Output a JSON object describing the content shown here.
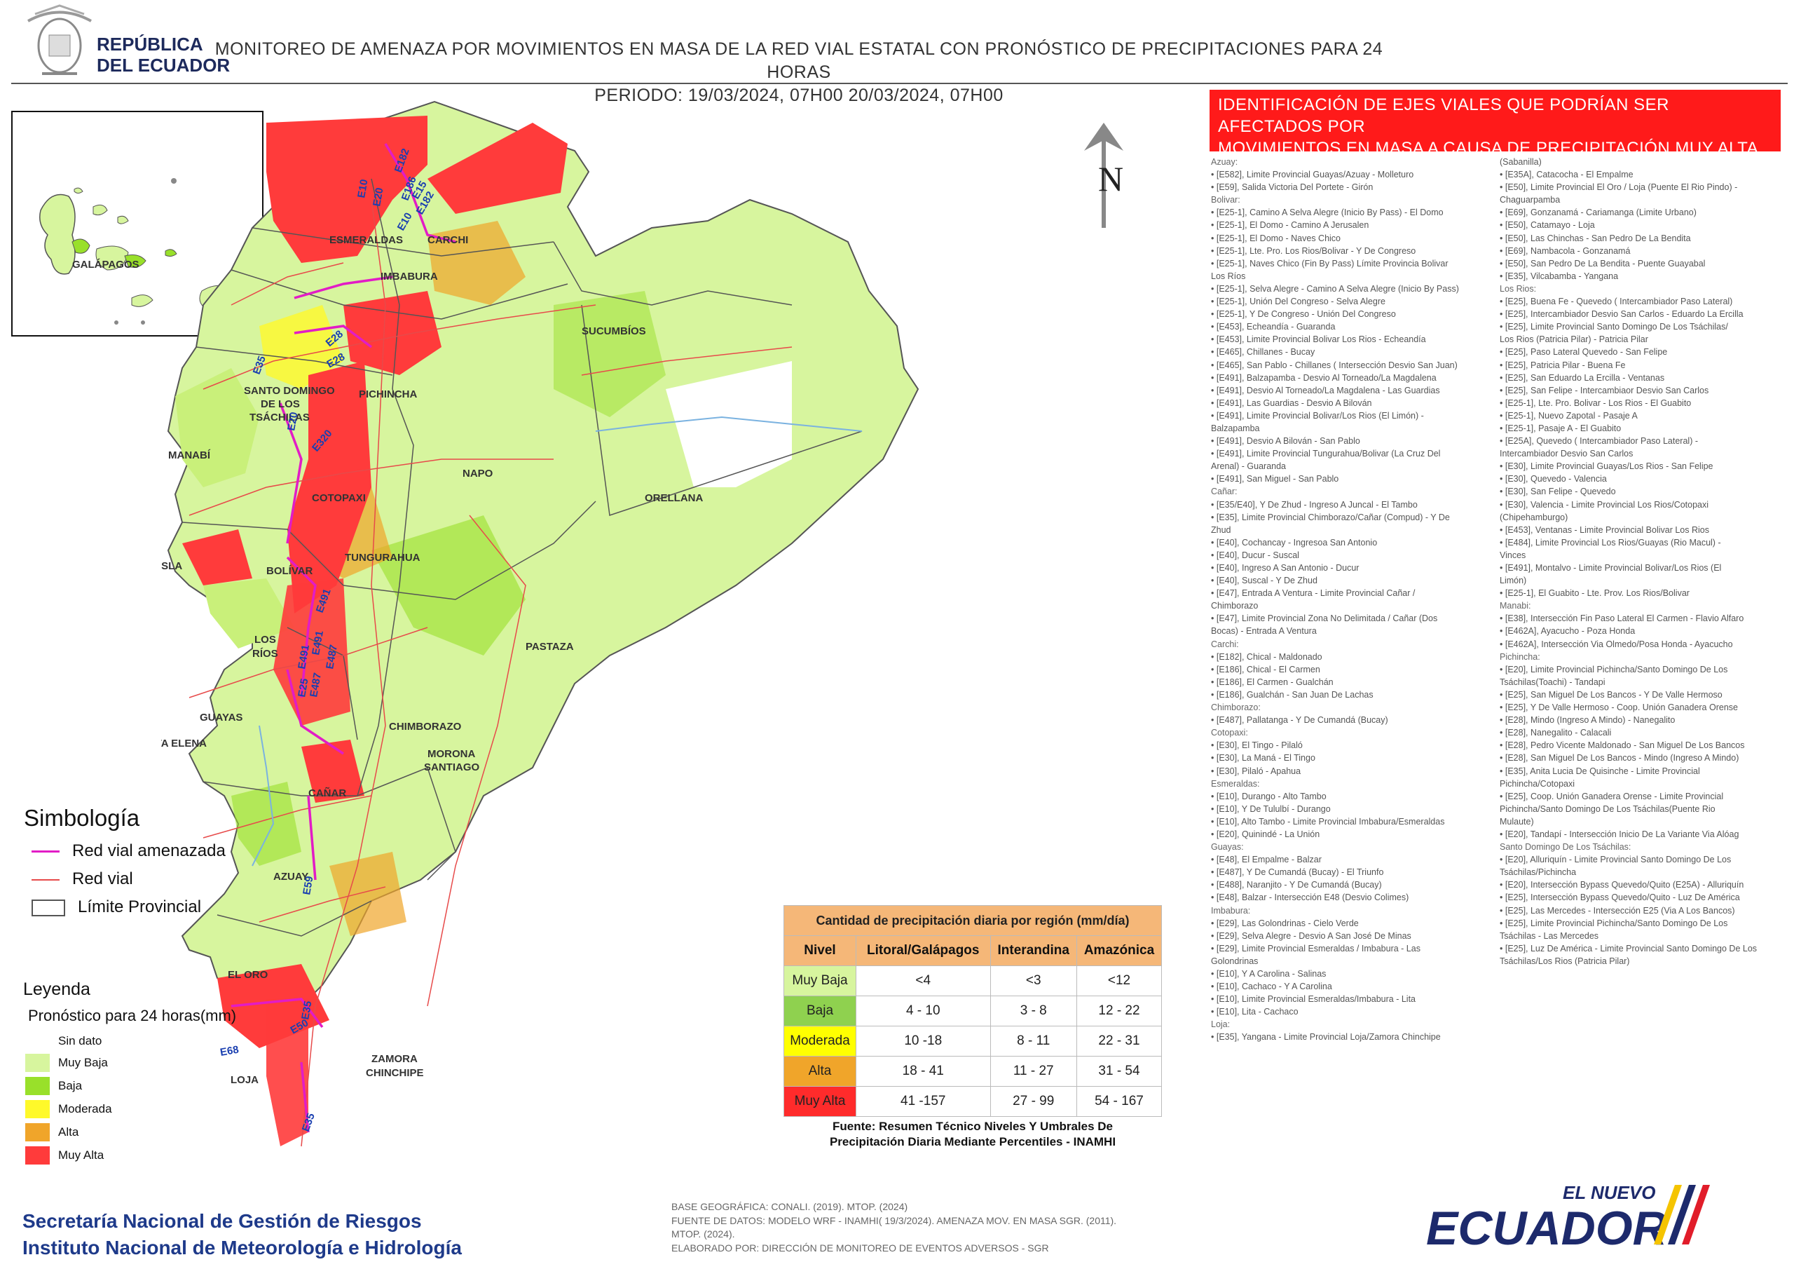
{
  "header": {
    "gov_line1": "REPÚBLICA",
    "gov_line2": "DEL ECUADOR",
    "title_line1": "MONITOREO DE AMENAZA POR MOVIMIENTOS EN MASA DE LA RED VIAL  ESTATAL  CON PRONÓSTICO  DE  PRECIPITACIONES PARA 24 HORAS",
    "title_line2": "PERIODO: 19/03/2024, 07H00 20/03/2024, 07H00"
  },
  "inset": {
    "label": "GALÁPAGOS"
  },
  "north_label": "N",
  "map_labels": {
    "provinces": [
      "ESMERALDAS",
      "CARCHI",
      "IMBABURA",
      "SUCUMBÍOS",
      "PICHINCHA",
      "SANTO DOMINGO",
      "DE LOS",
      "TSÁCHILAS",
      "MANABÍ",
      "NAPO",
      "ORELLANA",
      "COTOPAXI",
      "TUNGURAHUA",
      "BOLÍVAR",
      "ISLA",
      "PASTAZA",
      "LOS",
      "RÍOS",
      "GUAYAS",
      "SANTA ELENA",
      "CHIMBORAZO",
      "MORONA",
      "SANTIAGO",
      "CAÑAR",
      "AZUAY",
      "EL ORO",
      "ZAMORA",
      "CHINCHIPE",
      "LOJA"
    ],
    "roads": [
      "E182",
      "E10",
      "E20",
      "E186",
      "E15",
      "E182",
      "E10",
      "E28",
      "E28",
      "E35",
      "E20",
      "E320",
      "E491",
      "E491",
      "E491",
      "E487",
      "E25",
      "E487",
      "E59",
      "E35",
      "E50",
      "E68",
      "E35"
    ]
  },
  "id_box": {
    "title_line1": "IDENTIFICACIÓN DE EJES VIALES QUE PODRÍAN SER AFECTADOS POR",
    "title_line2": "MOVIMIENTOS EN MASA A CAUSA DE PRECIPITACIÓN MUY ALTA"
  },
  "roads_col1": [
    "Azuay:",
    "• [E582], Limite Provincial Guayas/Azuay - Molleturo",
    "• [E59], Salida Victoria Del Portete - Girón",
    "Bolivar:",
    "• [E25-1], Camino A Selva Alegre (Inicio By Pass) - El Domo",
    "• [E25-1], El Domo - Camino A Jerusalen",
    "• [E25-1], El Domo - Naves Chico",
    "• [E25-1], Lte. Pro. Los Rios/Bolivar - Y De Congreso",
    "• [E25-1], Naves Chico (Fin By Pass) Límite Provincia Bolivar",
    "Los Ríos",
    "• [E25-1], Selva Alegre - Camino A Selva Alegre (Inicio By Pass)",
    "• [E25-1], Unión Del Congreso - Selva  Alegre",
    "• [E25-1], Y De Congreso - Unión Del Congreso",
    "• [E453], Echeandía - Guaranda",
    "• [E453], Limite Provincial Bolivar Los Rios - Echeandía",
    "• [E465], Chillanes - Bucay",
    "• [E465], San Pablo - Chillanes ( Intersección Desvio San Juan)",
    "• [E491], Balzapamba - Desvio Al Torneado/La Magdalena",
    "• [E491], Desvio Al Torneado/La Magdalena - Las Guardias",
    "• [E491], Las Guardias - Desvio A Bilován",
    "• [E491], Limite Provincial Bolivar/Los Rios (El Limón) -",
    "Balzapamba",
    "• [E491], Desvio A Bilován - San Pablo",
    "• [E491], Limite Provincial Tungurahua/Bolivar (La Cruz Del",
    "Arenal) - Guaranda",
    "• [E491], San Miguel - San Pablo",
    "Cañar:",
    "• [E35/E40], Y De Zhud - Ingreso A Juncal - El Tambo",
    "• [E35], Limite Provincial Chimborazo/Cañar (Compud) - Y De",
    "Zhud",
    "• [E40], Cochancay - Ingresoa San Antonio",
    "• [E40], Ducur - Suscal",
    "• [E40], Ingreso A San Antonio - Ducur",
    "• [E40], Suscal - Y De Zhud",
    "• [E47], Entrada A Ventura -  Limite Provincial Cañar /",
    "Chimborazo",
    "• [E47], Limite Provincial Zona No Delimitada / Cañar (Dos",
    "Bocas) - Entrada  A Ventura",
    "Carchi:",
    "• [E182], Chical - Maldonado",
    "• [E186], Chical - El Carmen",
    "• [E186], El Carmen - Gualchán",
    "• [E186], Gualchán - San Juan De Lachas",
    "Chimborazo:",
    "• [E487], Pallatanga - Y De Cumandá (Bucay)",
    "Cotopaxi:",
    "• [E30], El Tingo - Pilaló",
    "• [E30], La Maná - El Tingo",
    "• [E30], Pilaló - Apahua",
    "Esmeraldas:",
    "• [E10], Durango - Alto Tambo",
    "• [E10], Y De Tululbí - Durango",
    "• [E10], Alto Tambo - Limite Provincial Imbabura/Esmeraldas",
    "• [E20], Quinindé - La Unión",
    "Guayas:",
    "• [E48], El Empalme - Balzar",
    "• [E487], Y De Cumandá (Bucay) - El Triunfo",
    "• [E488], Naranjito - Y De Cumandá (Bucay)",
    "• [E48], Balzar - Intersección E48 (Desvio Colimes)",
    "Imbabura:",
    "• [E29], Las Golondrinas - Cielo Verde",
    "• [E29], Selva  Alegre - Desvio  A San José De Minas",
    "• [E29], Limite Provincial Esmeraldas / Imbabura - Las",
    "Golondrinas",
    "• [E10], Y A Carolina - Salinas",
    "• [E10], Cachaco - Y A Carolina",
    "• [E10], Limite Provincial Esmeraldas/Imbabura - Lita",
    "• [E10], Lita - Cachaco",
    "Loja:",
    "• [E35], Yangana - Limite Provincial Loja/Zamora Chinchipe"
  ],
  "roads_col2": [
    "(Sabanilla)",
    "• [E35A], Catacocha - El Empalme",
    "• [E50], Limite Provincial El Oro / Loja (Puente El Rio Pindo) -",
    "Chaguarpamba",
    "• [E69], Gonzanamá - Cariamanga (Limite Urbano)",
    "• [E50], Catamayo - Loja",
    "• [E50], Las Chinchas - San Pedro De La Bendita",
    "• [E69], Nambacola - Gonzanamá",
    "• [E50], San Pedro De La Bendita - Puente Guayabal",
    "• [E35], Vilcabamba - Yangana",
    "Los Rios:",
    "• [E25], Buena Fe - Quevedo ( Intercambiador Paso Lateral)",
    "• [E25], Intercambiador Desvio  San Carlos - Eduardo La Ercilla",
    "• [E25], Limite Provincial Santo Domingo De Los Tsáchilas/",
    "Los Rios (Patricia Pilar) - Patricia Pilar",
    "• [E25], Paso Lateral Quevedo - San Felipe",
    "• [E25], Patricia Pilar - Buena Fe",
    "• [E25], San Eduardo La Ercilla - Ventanas",
    "• [E25], San Felipe  - Intercambiaor Desvio  San Carlos",
    "• [E25-1], Lte. Pro. Bolivar - Los Rios - El Guabito",
    "• [E25-1], Nuevo Zapotal - Pasaje A",
    "• [E25-1], Pasaje A - El Guabito",
    "• [E25A], Quevedo ( Intercambiador Paso Lateral) -",
    "Intercambiador Desvio  San Carlos",
    "• [E30], Limite Provincial Guayas/Los Rios - San Felipe",
    "• [E30], Quevedo - Valencia",
    "• [E30], San Felipe - Quevedo",
    "• [E30], Valencia - Limite Provincial Los Rios/Cotopaxi",
    "(Chipehamburgo)",
    "• [E453], Ventanas - Limite Provincial Bolivar Los Rios",
    "• [E484], Limite Provincial Los Rios/Guayas (Rio Macul) -",
    "Vinces",
    "• [E491], Montalvo - Limite Provincial Bolivar/Los Rios (El",
    "Limón)",
    "• [E25-1], El Guabito - Lte. Prov. Los Rios/Bolivar",
    "Manabi:",
    "• [E38], Intersección Fin Paso Lateral El Carmen - Flavio Alfaro",
    "• [E462A], Ayacucho - Poza Honda",
    "• [E462A], Intersección Via Olmedo/Posa Honda - Ayacucho",
    "Pichincha:",
    "• [E20], Limite Provincial Pichincha/Santo Domingo De Los",
    "Tsáchilas(Toachi) - Tandapi",
    "• [E25], San Miguel De Los Bancos - Y De Valle Hermoso",
    "• [E25], Y De Valle Hermoso - Coop. Unión Ganadera Orense",
    "• [E28], Mindo (Ingreso A Mindo) - Nanegalito",
    "• [E28], Nanegalito - Calacali",
    "• [E28], Pedro Vicente Maldonado - San Miguel De Los Bancos",
    "• [E28], San Miguel De Los Bancos - Mindo (Ingreso A Mindo)",
    "• [E35], Anita Lucia De Quisinche - Limite Provincial",
    "Pichincha/Cotopaxi",
    "• [E25], Coop. Unión Ganadera Orense - Limite Provincial",
    "Pichincha/Santo Domingo De Los Tsáchilas(Puente Rio",
    "Mulaute)",
    "• [E20], Tandapí - Intersección Inicio De La Variante Via Alóag",
    "Santo Domingo De Los Tsáchilas:",
    "• [E20], Alluriquín - Limite Provincial Santo Domingo De Los",
    "Tsáchilas/Pichincha",
    "• [E20], Intersección Bypass Quevedo/Quito (E25A) - Alluriquín",
    "• [E25], Intersección Bypass Quevedo/Quito - Luz De América",
    "• [E25], Las Mercedes - Intersección E25 (Via A Los Bancos)",
    "• [E25], Limite Provincial Pichincha/Santo Domingo De Los",
    "Tsáchilas - Las Mercedes",
    "• [E25], Luz De América - Limite Provincial Santo Domingo De Los",
    "Tsáchilas/Los Rios (Patricia Pilar)"
  ],
  "simbologia": {
    "title": "Simbología",
    "items": [
      {
        "label": "Red vial amenazada",
        "color": "#e21cc6"
      },
      {
        "label": "Red vial",
        "color": "#e74a4a"
      },
      {
        "label": "Límite Provincial",
        "color": "#555555"
      }
    ]
  },
  "leyenda": {
    "title": "Leyenda",
    "subtitle": "Pronóstico para 24 horas(mm)",
    "items": [
      {
        "label": "Sin dato",
        "color": "#ffffff"
      },
      {
        "label": "Muy Baja",
        "color": "#d7f59e"
      },
      {
        "label": "Baja",
        "color": "#99e02a"
      },
      {
        "label": "Moderada",
        "color": "#fff92a"
      },
      {
        "label": "Alta",
        "color": "#f0a52a"
      },
      {
        "label": "Muy Alta",
        "color": "#ff3b3b"
      }
    ]
  },
  "precip_table": {
    "caption": "Cantidad de precipitación diaria por región (mm/día)",
    "headers": [
      "Nivel",
      "Litoral/Galápagos",
      "Interandina",
      "Amazónica"
    ],
    "rows": [
      {
        "nivel": "Muy Baja",
        "color": "#d7f59e",
        "litoral": "<4",
        "interandina": "<3",
        "amazonica": "<12"
      },
      {
        "nivel": "Baja",
        "color": "#8fd14f",
        "litoral": "4 - 10",
        "interandina": "3 - 8",
        "amazonica": "12 - 22"
      },
      {
        "nivel": "Moderada",
        "color": "#ffff00",
        "litoral": "10 -18",
        "interandina": "8 - 11",
        "amazonica": "22 - 31"
      },
      {
        "nivel": "Alta",
        "color": "#f0a52a",
        "litoral": "18 - 41",
        "interandina": "11 - 27",
        "amazonica": "31 - 54"
      },
      {
        "nivel": "Muy Alta",
        "color": "#ff2b2b",
        "litoral": "41 -157",
        "interandina": "27 - 99",
        "amazonica": "54 - 167"
      }
    ],
    "source_line1": "Fuente: Resumen Técnico Niveles Y Umbrales De",
    "source_line2": "Precipitación Diaria Mediante Percentiles - INAMHI"
  },
  "footer": {
    "org_line1": "Secretaría Nacional de Gestión de Riesgos",
    "org_line2": "Instituto Nacional de Meteorología e Hidrología",
    "base_line1": "BASE GEOGRÁFICA: CONALI. (2019). MTOP. (2024)",
    "base_line2": "FUENTE DE DATOS: MODELO WRF - INAMHI( 19/3/2024).  AMENAZA MOV. EN MASA SGR. (2011).",
    "base_line3": "MTOP. (2024).",
    "base_line4": "ELABORADO POR: DIRECCIÓN DE MONITOREO DE EVENTOS ADVERSOS - SGR",
    "logo_small": "EL NUEVO",
    "logo_big": "ECUADOR"
  }
}
